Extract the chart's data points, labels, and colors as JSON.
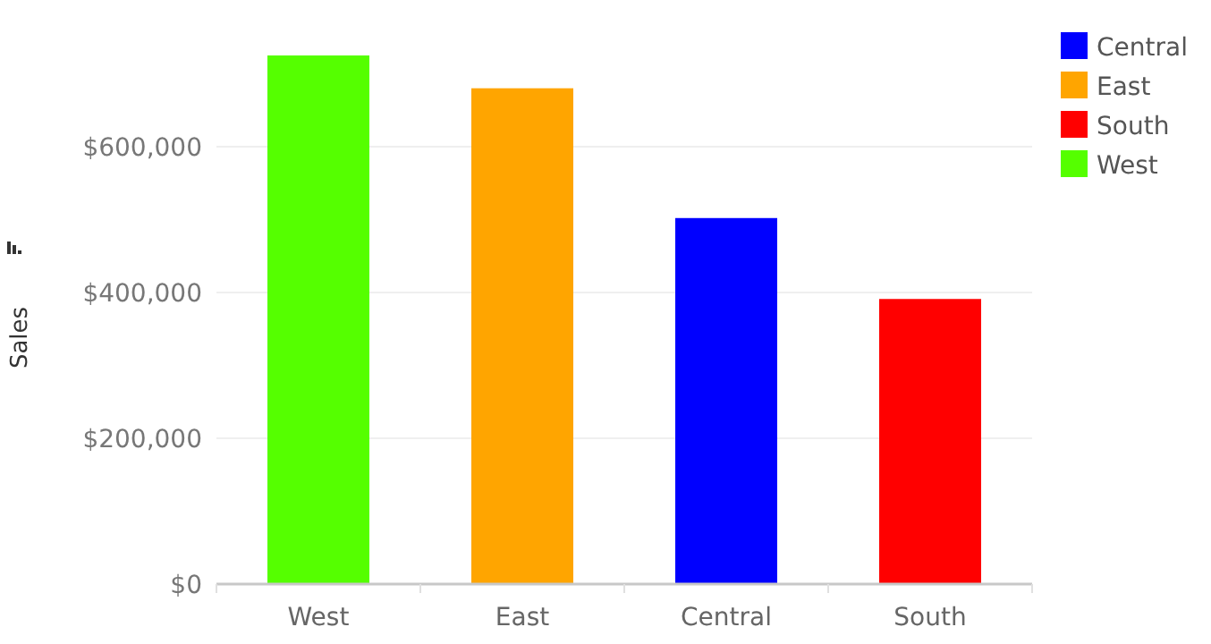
{
  "chart_data": {
    "type": "bar",
    "ylabel": "Sales",
    "categories": [
      "West",
      "East",
      "Central",
      "South"
    ],
    "series": [
      {
        "name": "Central",
        "color": "#0000ff",
        "values": [
          null,
          null,
          502000,
          null
        ]
      },
      {
        "name": "East",
        "color": "#ffa500",
        "values": [
          null,
          680000,
          null,
          null
        ]
      },
      {
        "name": "South",
        "color": "#ff0000",
        "values": [
          null,
          null,
          null,
          391000
        ]
      },
      {
        "name": "West",
        "color": "#55ff00",
        "values": [
          725000,
          null,
          null,
          null
        ]
      }
    ],
    "ylim": [
      0,
      725000
    ],
    "yticks": [
      {
        "value": 0,
        "label": "$0"
      },
      {
        "value": 200000,
        "label": "$200,000"
      },
      {
        "value": 400000,
        "label": "$400,000"
      },
      {
        "value": 600000,
        "label": "$600,000"
      }
    ],
    "grid": "y",
    "legend": "top right"
  }
}
